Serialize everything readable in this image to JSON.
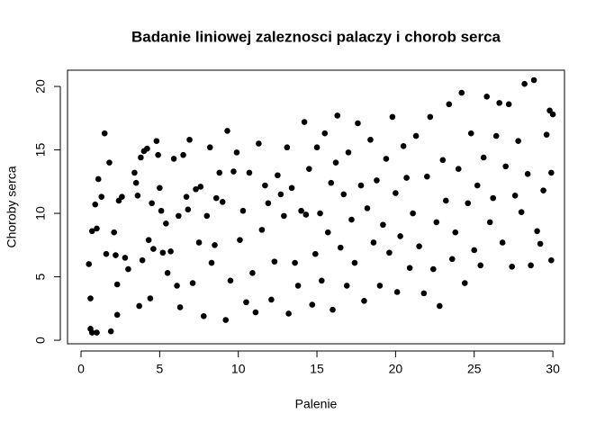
{
  "chart_data": {
    "type": "scatter",
    "title": "Badanie liniowej zaleznosci palaczy i chorob serca",
    "x_label": "Palenie",
    "y_label": "Choroby serca",
    "color": "#000000",
    "xlim": [
      -0.86,
      30.74
    ],
    "ylim": [
      -0.28,
      21.28
    ],
    "xticks": [
      0,
      5,
      10,
      15,
      20,
      25,
      30
    ],
    "yticks": [
      0,
      5,
      10,
      15,
      20
    ],
    "grid": false,
    "x": [
      0.6,
      0.7,
      1.0,
      0.5,
      0.6,
      0.7,
      0.9,
      1.0,
      1.1,
      1.3,
      1.5,
      1.6,
      1.8,
      1.9,
      2.1,
      2.2,
      2.3,
      2.3,
      2.4,
      2.6,
      2.8,
      3.0,
      3.4,
      3.5,
      3.6,
      3.7,
      3.8,
      3.9,
      4.0,
      4.2,
      4.3,
      4.4,
      4.5,
      4.6,
      4.8,
      4.9,
      5.0,
      5.1,
      5.2,
      5.4,
      5.5,
      5.7,
      5.9,
      6.1,
      6.2,
      6.3,
      6.5,
      6.7,
      6.8,
      6.9,
      7.1,
      7.3,
      7.5,
      7.6,
      7.8,
      8.0,
      8.2,
      8.3,
      8.5,
      8.6,
      8.8,
      9.0,
      9.2,
      9.3,
      9.5,
      9.7,
      9.9,
      10.1,
      10.3,
      10.5,
      10.7,
      10.9,
      11.1,
      11.3,
      11.5,
      11.7,
      11.9,
      12.1,
      12.3,
      12.5,
      12.7,
      12.9,
      13.1,
      13.2,
      13.4,
      13.6,
      13.8,
      14.0,
      14.2,
      14.3,
      14.5,
      14.7,
      14.9,
      15.0,
      15.2,
      15.3,
      15.5,
      15.7,
      15.9,
      16.0,
      16.2,
      16.3,
      16.5,
      16.7,
      16.9,
      17.0,
      17.2,
      17.4,
      17.6,
      17.8,
      18.0,
      18.2,
      18.4,
      18.6,
      18.8,
      19.0,
      19.2,
      19.4,
      19.6,
      19.8,
      20.0,
      20.1,
      20.3,
      20.5,
      20.7,
      20.9,
      21.1,
      21.3,
      21.5,
      21.8,
      22.0,
      22.2,
      22.4,
      22.6,
      22.8,
      23.0,
      23.2,
      23.4,
      23.6,
      23.8,
      24.0,
      24.2,
      24.4,
      24.6,
      24.8,
      25.0,
      25.2,
      25.4,
      25.6,
      25.8,
      26.0,
      26.2,
      26.4,
      26.6,
      26.8,
      27.0,
      27.2,
      27.4,
      27.6,
      27.8,
      28.0,
      28.2,
      28.4,
      28.6,
      28.8,
      29.0,
      29.2,
      29.4,
      29.6,
      29.8,
      29.9,
      30.0,
      29.9
    ],
    "y": [
      0.9,
      0.6,
      0.6,
      6.0,
      3.3,
      8.6,
      10.7,
      8.8,
      12.7,
      11.3,
      16.3,
      6.8,
      14.0,
      0.7,
      8.5,
      6.7,
      4.4,
      2.0,
      11.0,
      11.3,
      6.5,
      5.6,
      13.2,
      12.4,
      11.4,
      2.7,
      14.4,
      6.3,
      14.9,
      15.1,
      7.9,
      3.3,
      10.8,
      7.2,
      15.7,
      14.6,
      12.0,
      10.2,
      6.9,
      9.2,
      5.3,
      7.0,
      14.3,
      4.3,
      9.8,
      2.6,
      14.6,
      11.3,
      10.3,
      15.8,
      4.5,
      11.9,
      7.7,
      12.1,
      1.9,
      9.8,
      15.2,
      6.1,
      7.5,
      11.2,
      13.2,
      10.9,
      1.6,
      16.5,
      4.7,
      13.3,
      14.8,
      7.9,
      10.2,
      3.0,
      13.2,
      5.3,
      2.2,
      15.5,
      8.7,
      12.2,
      10.8,
      3.2,
      6.2,
      13.0,
      11.5,
      9.8,
      15.2,
      2.1,
      12.0,
      6.1,
      4.3,
      10.2,
      17.2,
      9.9,
      13.5,
      2.8,
      6.8,
      15.2,
      10.0,
      4.7,
      16.3,
      8.5,
      12.4,
      2.4,
      14.0,
      17.7,
      7.3,
      11.5,
      4.3,
      14.8,
      9.5,
      6.1,
      17.1,
      12.2,
      3.1,
      10.4,
      15.8,
      7.7,
      12.6,
      4.3,
      9.1,
      14.3,
      6.9,
      17.6,
      11.6,
      3.8,
      8.2,
      15.3,
      12.8,
      5.7,
      10.0,
      16.1,
      7.4,
      3.7,
      12.9,
      17.6,
      5.6,
      9.3,
      2.7,
      14.2,
      11.0,
      18.6,
      6.4,
      8.5,
      13.5,
      19.5,
      4.5,
      10.8,
      16.3,
      7.1,
      12.2,
      5.9,
      14.4,
      19.2,
      9.3,
      11.2,
      16.1,
      18.7,
      7.7,
      13.7,
      18.6,
      5.8,
      11.4,
      15.7,
      10.1,
      20.2,
      13.1,
      5.9,
      20.5,
      8.6,
      7.6,
      11.8,
      16.2,
      18.1,
      6.3,
      17.8,
      13.2
    ]
  }
}
